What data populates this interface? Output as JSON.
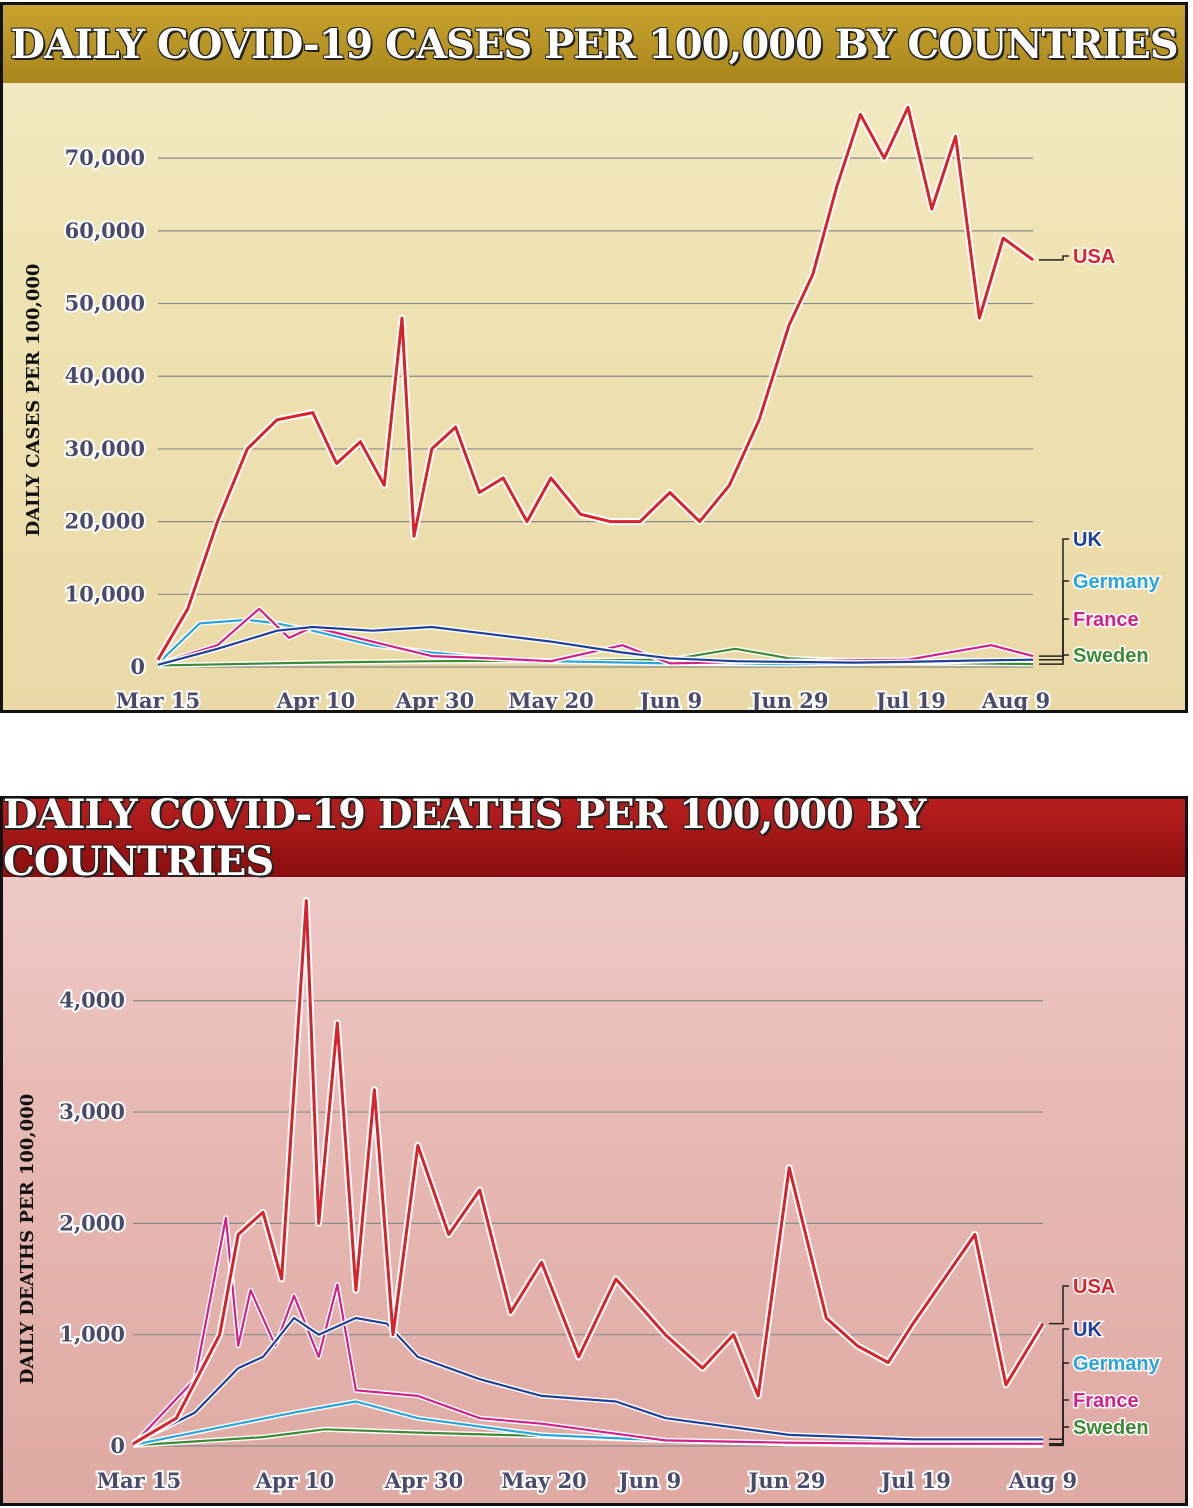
{
  "charts": {
    "cases": {
      "title": "DAILY COVID-19 CASES PER 100,000 BY COUNTRIES",
      "ylabel": "DAILY CASES PER 100,000"
    },
    "deaths": {
      "title": "DAILY COVID-19 DEATHS PER 100,000 BY COUNTRIES",
      "ylabel": "DAILY DEATHS PER 100,000"
    }
  },
  "colors": {
    "USA": "#d8232a",
    "UK": "#1e3f9a",
    "Germany": "#2aa4dc",
    "France": "#d21f8a",
    "Sweden": "#3c8a33"
  },
  "chart_data": [
    {
      "type": "line",
      "title": "DAILY COVID-19 CASES PER 100,000 BY COUNTRIES",
      "ylabel": "DAILY CASES PER 100,000",
      "xlabel": "",
      "x_ticks": [
        "Mar 15",
        "Apr 10",
        "Apr 30",
        "May 20",
        "Jun 9",
        "Jun 29",
        "Jul 19",
        "Aug 9"
      ],
      "y_ticks": [
        0,
        10000,
        20000,
        30000,
        40000,
        50000,
        60000,
        70000
      ],
      "y_tick_labels": [
        "0",
        "10,000",
        "20,000",
        "30,000",
        "40,000",
        "50,000",
        "60,000",
        "70,000"
      ],
      "ylim": [
        0,
        78000
      ],
      "grid": true,
      "legend_placement": "right",
      "series": [
        {
          "name": "USA",
          "x": [
            "Mar 15",
            "Mar 20",
            "Mar 25",
            "Mar 30",
            "Apr 4",
            "Apr 10",
            "Apr 14",
            "Apr 18",
            "Apr 22",
            "Apr 25",
            "Apr 27",
            "Apr 30",
            "May 4",
            "May 8",
            "May 12",
            "May 16",
            "May 20",
            "May 25",
            "May 30",
            "Jun 4",
            "Jun 9",
            "Jun 14",
            "Jun 19",
            "Jun 24",
            "Jun 29",
            "Jul 3",
            "Jul 7",
            "Jul 11",
            "Jul 15",
            "Jul 19",
            "Jul 23",
            "Jul 27",
            "Jul 31",
            "Aug 4",
            "Aug 9"
          ],
          "values": [
            1000,
            8000,
            20000,
            30000,
            34000,
            35000,
            28000,
            31000,
            25000,
            48000,
            18000,
            30000,
            33000,
            24000,
            26000,
            20000,
            26000,
            21000,
            20000,
            20000,
            24000,
            20000,
            25000,
            34000,
            47000,
            54000,
            66000,
            76000,
            70000,
            77000,
            63000,
            73000,
            48000,
            59000,
            56000
          ]
        },
        {
          "name": "UK",
          "x": [
            "Mar 15",
            "Mar 25",
            "Apr 4",
            "Apr 10",
            "Apr 20",
            "Apr 30",
            "May 10",
            "May 20",
            "Jun 1",
            "Jun 9",
            "Jun 20",
            "Jun 29",
            "Jul 10",
            "Jul 19",
            "Jul 30",
            "Aug 9"
          ],
          "values": [
            300,
            2500,
            5000,
            5500,
            5000,
            5500,
            4500,
            3500,
            2000,
            1200,
            800,
            700,
            600,
            700,
            900,
            1000
          ]
        },
        {
          "name": "Germany",
          "x": [
            "Mar 15",
            "Mar 22",
            "Mar 30",
            "Apr 4",
            "Apr 10",
            "Apr 20",
            "Apr 30",
            "May 10",
            "May 20",
            "Jun 9",
            "Jun 29",
            "Jul 19",
            "Aug 9"
          ],
          "values": [
            500,
            6000,
            6500,
            6000,
            5000,
            3000,
            2000,
            1200,
            800,
            500,
            400,
            600,
            1000
          ]
        },
        {
          "name": "France",
          "x": [
            "Mar 15",
            "Mar 25",
            "Apr 1",
            "Apr 6",
            "Apr 10",
            "Apr 20",
            "Apr 30",
            "May 10",
            "May 20",
            "Jun 1",
            "Jun 9",
            "Jun 29",
            "Jul 19",
            "Aug 2",
            "Aug 9"
          ],
          "values": [
            400,
            3000,
            8000,
            4000,
            5500,
            3500,
            1500,
            1200,
            800,
            3000,
            500,
            800,
            1000,
            3000,
            1500
          ]
        },
        {
          "name": "Sweden",
          "x": [
            "Mar 15",
            "Apr 10",
            "Apr 30",
            "May 20",
            "Jun 9",
            "Jun 20",
            "Jun 29",
            "Jul 19",
            "Aug 9"
          ],
          "values": [
            200,
            600,
            800,
            900,
            1000,
            2500,
            1200,
            600,
            400
          ]
        }
      ]
    },
    {
      "type": "line",
      "title": "DAILY COVID-19 DEATHS PER 100,000 BY COUNTRIES",
      "ylabel": "DAILY DEATHS PER 100,000",
      "xlabel": "",
      "x_ticks": [
        "Mar 15",
        "Apr 10",
        "Apr 30",
        "May 20",
        "Jun 9",
        "Jun 29",
        "Jul 19",
        "Aug 9"
      ],
      "y_ticks": [
        0,
        1000,
        2000,
        3000,
        4000
      ],
      "y_tick_labels": [
        "0",
        "1,000",
        "2,000",
        "3,000",
        "4,000"
      ],
      "ylim": [
        0,
        4950
      ],
      "grid": true,
      "legend_placement": "right",
      "series": [
        {
          "name": "USA",
          "x": [
            "Mar 15",
            "Mar 22",
            "Mar 29",
            "Apr 1",
            "Apr 5",
            "Apr 8",
            "Apr 12",
            "Apr 14",
            "Apr 17",
            "Apr 20",
            "Apr 23",
            "Apr 26",
            "Apr 30",
            "May 5",
            "May 10",
            "May 15",
            "May 20",
            "May 26",
            "Jun 1",
            "Jun 9",
            "Jun 15",
            "Jun 20",
            "Jun 24",
            "Jun 29",
            "Jul 5",
            "Jul 10",
            "Jul 15",
            "Jul 19",
            "Jul 24",
            "Jul 29",
            "Aug 3",
            "Aug 9"
          ],
          "values": [
            20,
            250,
            1000,
            1900,
            2100,
            1500,
            4900,
            2000,
            3800,
            1400,
            3200,
            1000,
            2700,
            1900,
            2300,
            1200,
            1650,
            800,
            1500,
            1000,
            700,
            1000,
            450,
            2500,
            1150,
            900,
            750,
            1100,
            1500,
            1900,
            550,
            1100
          ]
        },
        {
          "name": "UK",
          "x": [
            "Mar 15",
            "Mar 25",
            "Apr 1",
            "Apr 5",
            "Apr 10",
            "Apr 14",
            "Apr 20",
            "Apr 25",
            "Apr 30",
            "May 10",
            "May 20",
            "Jun 1",
            "Jun 9",
            "Jun 29",
            "Jul 19",
            "Aug 9"
          ],
          "values": [
            20,
            300,
            700,
            800,
            1150,
            1000,
            1150,
            1100,
            800,
            600,
            450,
            400,
            250,
            100,
            60,
            60
          ]
        },
        {
          "name": "Germany",
          "x": [
            "Mar 15",
            "Apr 1",
            "Apr 10",
            "Apr 15",
            "Apr 20",
            "Apr 30",
            "May 20",
            "Jun 9",
            "Jun 29",
            "Jul 19",
            "Aug 9"
          ],
          "values": [
            10,
            200,
            300,
            350,
            400,
            250,
            100,
            50,
            20,
            10,
            10
          ]
        },
        {
          "name": "France",
          "x": [
            "Mar 15",
            "Mar 25",
            "Mar 30",
            "Apr 1",
            "Apr 3",
            "Apr 7",
            "Apr 10",
            "Apr 14",
            "Apr 17",
            "Apr 20",
            "Apr 30",
            "May 10",
            "May 20",
            "Jun 9",
            "Jun 29",
            "Jul 19",
            "Aug 9"
          ],
          "values": [
            10,
            600,
            2050,
            900,
            1400,
            900,
            1350,
            800,
            1450,
            500,
            450,
            250,
            200,
            50,
            30,
            20,
            20
          ]
        },
        {
          "name": "Sweden",
          "x": [
            "Mar 15",
            "Apr 5",
            "Apr 15",
            "Apr 30",
            "May 20",
            "Jun 9",
            "Jun 29",
            "Jul 19",
            "Aug 9"
          ],
          "values": [
            5,
            80,
            150,
            120,
            90,
            50,
            20,
            10,
            5
          ]
        }
      ]
    }
  ]
}
